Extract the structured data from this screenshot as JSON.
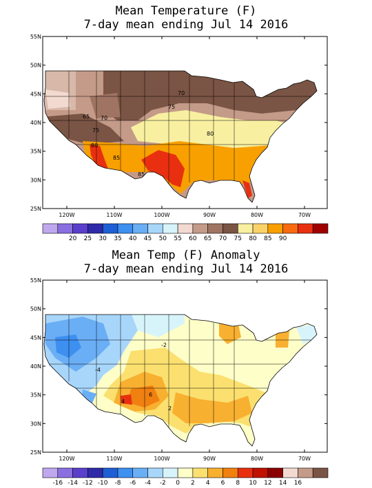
{
  "panel1": {
    "title_line1": "Mean Temperature (F)",
    "title_line2": "7-day mean ending Jul 14 2016",
    "lat_labels": [
      "55N",
      "50N",
      "45N",
      "40N",
      "35N",
      "30N",
      "25N"
    ],
    "lon_labels": [
      "120W",
      "110W",
      "100W",
      "90W",
      "80W",
      "70W"
    ],
    "contour_labels": [
      "70",
      "75",
      "80",
      "85",
      "65",
      "70",
      "75",
      "80",
      "85"
    ],
    "colorbar": {
      "labels": [
        "20",
        "25",
        "30",
        "35",
        "40",
        "45",
        "50",
        "55",
        "60",
        "65",
        "70",
        "75",
        "80",
        "85",
        "90"
      ],
      "colors": [
        "#c0a8ee",
        "#8a6fe0",
        "#5a3fcc",
        "#2e2aa8",
        "#1f5fd6",
        "#3d8ff0",
        "#6aaef5",
        "#a8d6fb",
        "#d8f4fb",
        "#f2dad0",
        "#c49a88",
        "#a07462",
        "#7a5444",
        "#f8f0a0",
        "#fbd26a",
        "#f8a000",
        "#f86a10",
        "#e83010",
        "#a00000"
      ]
    }
  },
  "panel2": {
    "title_line1": "Mean Temp (F) Anomaly",
    "title_line2": "7-day mean ending Jul 14 2016",
    "lat_labels": [
      "55N",
      "50N",
      "45N",
      "40N",
      "35N",
      "30N",
      "25N"
    ],
    "lon_labels": [
      "120W",
      "110W",
      "100W",
      "90W",
      "80W",
      "70W"
    ],
    "contour_labels": [
      "-4",
      "-2",
      "4",
      "6",
      "2"
    ],
    "colorbar": {
      "labels": [
        "-16",
        "-14",
        "-12",
        "-10",
        "-8",
        "-6",
        "-4",
        "-2",
        "0",
        "2",
        "4",
        "6",
        "8",
        "10",
        "12",
        "14",
        "16"
      ],
      "colors": [
        "#c0a8ee",
        "#8a6fe0",
        "#5a3fcc",
        "#2e2aa8",
        "#1f5fd6",
        "#3d8ff0",
        "#6aaef5",
        "#a8d6fb",
        "#d8f4fb",
        "#fefec8",
        "#fbe070",
        "#f8b030",
        "#f08010",
        "#e83010",
        "#c01000",
        "#8a0000",
        "#f2dad0",
        "#c49a88",
        "#7a5444"
      ]
    }
  },
  "colors": {
    "land_outline": "#000000",
    "frame": "#000000"
  }
}
